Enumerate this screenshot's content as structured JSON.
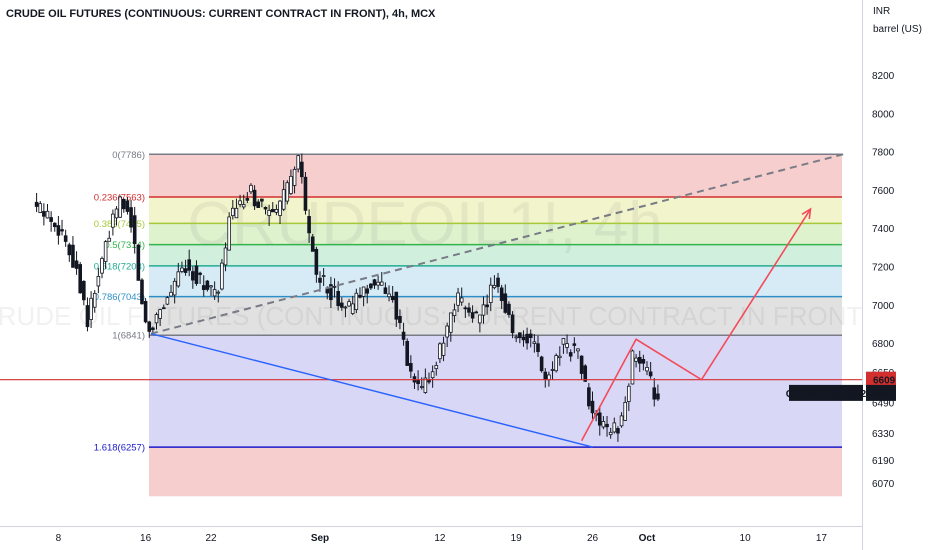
{
  "header": {
    "title": "CRUDE OIL FUTURES (CONTINUOUS: CURRENT CONTRACT IN FRONT), 4h, MCX"
  },
  "price_scale": {
    "currency": "INR",
    "unit": "barrel (US)"
  },
  "watermark": {
    "symbol": "CRUDEOIL1!, 4h",
    "description": "CRUDE OIL FUTURES (CONTINUOUS: CURRENT CONTRACT IN FRONT)"
  },
  "chart_data": {
    "type": "candlestick",
    "y_axis": {
      "min": 6000,
      "max": 8400,
      "ticks": [
        8200,
        8000,
        7800,
        7600,
        7400,
        7200,
        7000,
        6800,
        6650,
        6490,
        6330,
        6190,
        6070
      ],
      "tick_labels": [
        "8200",
        "8000",
        "7800",
        "7600",
        "7400",
        "7200",
        "7000",
        "6800",
        "6650",
        "6490",
        "6330",
        "6190",
        "6070"
      ],
      "scale": "linear"
    },
    "x_axis": {
      "ticks": [
        "8",
        "16",
        "22",
        "Sep",
        "12",
        "19",
        "26",
        "Oct",
        "10",
        "17"
      ],
      "tick_days": [
        -24,
        -16,
        -10,
        0,
        11,
        18,
        25,
        30,
        39,
        46
      ],
      "bold": [
        "Sep",
        "Oct"
      ],
      "last_candle_day": 30
    },
    "fib_levels": [
      {
        "label": "0(7786)",
        "value": 7786,
        "color": "#787b86",
        "fill": "#f5c6c6"
      },
      {
        "label": "0.236(7563)",
        "value": 7563,
        "color": "#d32f2f",
        "fill": "#f0f3c2"
      },
      {
        "label": "0.382(7425)",
        "value": 7425,
        "color": "#a5c93a",
        "fill": "#d8f0c6"
      },
      {
        "label": "0.5(7314)",
        "value": 7314,
        "color": "#34b34a",
        "fill": "#c8ecd6"
      },
      {
        "label": "0.618(7203)",
        "value": 7203,
        "color": "#22ab94",
        "fill": "#cfe7f5"
      },
      {
        "label": "0.786(7043)",
        "value": 7043,
        "color": "#2e8fc8",
        "fill": "#dcdcdc"
      },
      {
        "label": "1(6841)",
        "value": 6841,
        "color": "#787b86",
        "fill": "#d1d0f3"
      },
      {
        "label": "1.618(6257)",
        "value": 6257,
        "color": "#1a1acc",
        "fill": "#f5c6c6"
      }
    ],
    "fib_bottom_value": 6000,
    "horizontal_line": {
      "value": 6609,
      "color": "#d32f2f"
    },
    "price_labels": [
      {
        "value": 6609,
        "text": "6609",
        "bg": "#d32f2f",
        "fg": "#ffffff"
      },
      {
        "value": 6540,
        "text": "6540",
        "bg": "#131722",
        "fg": "#ffffff",
        "tag": "CRUDEOILV2022"
      }
    ],
    "trend_lines": [
      {
        "kind": "dashed",
        "color": "#787b86",
        "from": {
          "day": -15.5,
          "value": 6849
        },
        "to": {
          "day": 48,
          "value": 7786
        }
      },
      {
        "kind": "solid",
        "color": "#2962ff",
        "from": {
          "day": -15.5,
          "value": 6849
        },
        "to": {
          "day": 25,
          "value": 6257
        }
      }
    ],
    "projection": {
      "color": "#f44b5a",
      "points": [
        {
          "day": 24,
          "value": 6290
        },
        {
          "day": 29,
          "value": 6820
        },
        {
          "day": 35,
          "value": 6609
        },
        {
          "day": 45,
          "value": 7500
        }
      ]
    },
    "candle_anchors": [
      {
        "day": -26,
        "value": 7520
      },
      {
        "day": -24,
        "value": 7440
      },
      {
        "day": -22,
        "value": 7200
      },
      {
        "day": -21,
        "value": 6920
      },
      {
        "day": -19,
        "value": 7380
      },
      {
        "day": -18,
        "value": 7540
      },
      {
        "day": -17,
        "value": 7450
      },
      {
        "day": -16,
        "value": 7000
      },
      {
        "day": -15.5,
        "value": 6860
      },
      {
        "day": -14,
        "value": 7010
      },
      {
        "day": -12,
        "value": 7210
      },
      {
        "day": -10,
        "value": 7090
      },
      {
        "day": -9,
        "value": 7050
      },
      {
        "day": -8,
        "value": 7450
      },
      {
        "day": -6,
        "value": 7580
      },
      {
        "day": -4,
        "value": 7450
      },
      {
        "day": -3,
        "value": 7560
      },
      {
        "day": -1.5,
        "value": 7760
      },
      {
        "day": -1,
        "value": 7480
      },
      {
        "day": 0,
        "value": 7150
      },
      {
        "day": 1,
        "value": 7090
      },
      {
        "day": 3,
        "value": 6980
      },
      {
        "day": 5,
        "value": 7120
      },
      {
        "day": 7,
        "value": 7050
      },
      {
        "day": 8.5,
        "value": 6650
      },
      {
        "day": 9.5,
        "value": 6540
      },
      {
        "day": 11,
        "value": 6700
      },
      {
        "day": 13,
        "value": 7020
      },
      {
        "day": 15,
        "value": 6920
      },
      {
        "day": 16.5,
        "value": 7150
      },
      {
        "day": 18,
        "value": 6860
      },
      {
        "day": 20,
        "value": 6800
      },
      {
        "day": 21,
        "value": 6590
      },
      {
        "day": 22.5,
        "value": 6800
      },
      {
        "day": 24,
        "value": 6750
      },
      {
        "day": 25,
        "value": 6480
      },
      {
        "day": 26.5,
        "value": 6330
      },
      {
        "day": 28,
        "value": 6380
      },
      {
        "day": 29,
        "value": 6730
      },
      {
        "day": 30,
        "value": 6680
      },
      {
        "day": 31,
        "value": 6540
      }
    ]
  }
}
